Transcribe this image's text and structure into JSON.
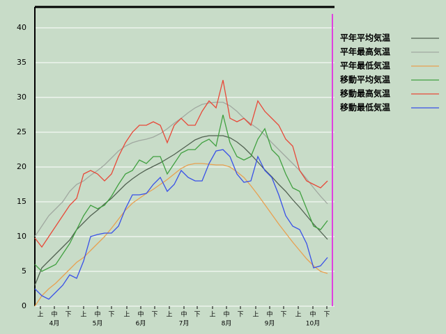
{
  "chart_data": {
    "type": "line",
    "x": [
      0,
      5,
      10,
      15,
      20,
      25,
      30,
      35,
      40,
      45,
      50,
      55,
      60,
      65,
      70,
      75,
      80,
      85,
      90,
      95,
      100,
      105,
      110,
      115,
      120,
      125,
      130,
      135,
      140,
      145,
      150,
      155,
      160,
      165,
      170,
      175,
      180,
      185,
      190,
      195,
      200,
      205,
      210
    ],
    "xlim": [
      0,
      215
    ],
    "xticks": [
      {
        "value": 4,
        "label": "上"
      },
      {
        "value": 14,
        "label": "中"
      },
      {
        "value": 24,
        "label": "下"
      },
      {
        "value": 35,
        "label": "上"
      },
      {
        "value": 45,
        "label": "中"
      },
      {
        "value": 55,
        "label": "下"
      },
      {
        "value": 66,
        "label": "上"
      },
      {
        "value": 76,
        "label": "中"
      },
      {
        "value": 86,
        "label": "下"
      },
      {
        "value": 96.5,
        "label": "上"
      },
      {
        "value": 107,
        "label": "中"
      },
      {
        "value": 116.5,
        "label": "下"
      },
      {
        "value": 127.5,
        "label": "上"
      },
      {
        "value": 137.5,
        "label": "中"
      },
      {
        "value": 147.5,
        "label": "下"
      },
      {
        "value": 158.5,
        "label": "上"
      },
      {
        "value": 168.5,
        "label": "中"
      },
      {
        "value": 178.5,
        "label": "下"
      },
      {
        "value": 189,
        "label": "上"
      },
      {
        "value": 199.5,
        "label": "中"
      },
      {
        "value": 209.5,
        "label": "下"
      }
    ],
    "month_labels": [
      {
        "value": 14,
        "label": "4月"
      },
      {
        "value": 45,
        "label": "5月"
      },
      {
        "value": 76,
        "label": "6月"
      },
      {
        "value": 107,
        "label": "7月"
      },
      {
        "value": 137.5,
        "label": "8月"
      },
      {
        "value": 168.5,
        "label": "9月"
      },
      {
        "value": 199.5,
        "label": "10月"
      }
    ],
    "ylim": [
      0,
      43
    ],
    "yticks": [
      0,
      5,
      10,
      15,
      20,
      25,
      30,
      35,
      40
    ],
    "grid": true,
    "legend": "top-right",
    "current_line": {
      "x": 213.5,
      "color": "#e040e0"
    },
    "series": [
      {
        "name": "平年平均気温",
        "color": "#506050",
        "values": [
          3.0,
          5.5,
          6.5,
          7.5,
          8.5,
          9.5,
          11,
          12,
          13,
          13.8,
          14.7,
          15.5,
          16.5,
          17.5,
          18.3,
          19,
          19.6,
          20.1,
          20.6,
          21.2,
          21.8,
          22.5,
          23.2,
          23.9,
          24.3,
          24.5,
          24.5,
          24.5,
          24.2,
          23.6,
          22.8,
          21.8,
          20.7,
          19.6,
          18.6,
          17.5,
          16.5,
          15.3,
          14.2,
          13,
          11.8,
          10.7,
          9.6
        ]
      },
      {
        "name": "平年最高気温",
        "color": "#a0a8a0",
        "values": [
          10,
          11.5,
          13,
          14,
          15,
          16.5,
          17.5,
          18,
          18.8,
          19.5,
          20.3,
          21.3,
          22.3,
          23,
          23.5,
          23.8,
          24,
          24.3,
          24.8,
          25.5,
          26.3,
          27,
          27.8,
          28.5,
          29,
          29.2,
          29.3,
          29.3,
          28.8,
          28,
          27,
          26.2,
          25.5,
          24.6,
          23.5,
          22.5,
          21.5,
          20.5,
          19.5,
          18.3,
          17,
          15.8,
          14.7
        ]
      },
      {
        "name": "平年最低気温",
        "color": "#e8a050",
        "values": [
          0,
          1.5,
          2.5,
          3.3,
          4.3,
          5.3,
          6.3,
          7,
          8,
          9,
          10,
          11.2,
          12.5,
          13.8,
          14.8,
          15.5,
          16.2,
          16.8,
          17.5,
          18.2,
          19,
          19.8,
          20.3,
          20.5,
          20.5,
          20.4,
          20.3,
          20.3,
          20,
          19.3,
          18.5,
          17.3,
          16,
          14.6,
          13.2,
          11.8,
          10.5,
          9.2,
          8,
          6.8,
          5.8,
          5,
          4.7
        ]
      },
      {
        "name": "移動平均気温",
        "color": "#40a040",
        "values": [
          6,
          5,
          5.5,
          6,
          7.5,
          9,
          11,
          13,
          14.5,
          14,
          14.5,
          15.8,
          17.5,
          19,
          19.5,
          21,
          20.5,
          21.5,
          21.5,
          19,
          20.5,
          22,
          22.5,
          22.5,
          23.5,
          24,
          23,
          27.5,
          23.5,
          21.5,
          21,
          21.5,
          24,
          25.5,
          22.5,
          21.5,
          19,
          17,
          16.5,
          14,
          11.5,
          11,
          12.3
        ]
      },
      {
        "name": "移動最高気温",
        "color": "#e84838",
        "values": [
          9.8,
          8.5,
          10,
          11.5,
          13,
          14.5,
          15.5,
          19,
          19.5,
          19,
          18,
          19,
          21.5,
          23.5,
          25,
          26,
          26,
          26.5,
          26,
          23.5,
          26,
          27,
          26,
          26,
          28,
          29.5,
          28.5,
          32.5,
          27,
          26.5,
          27,
          26,
          29.5,
          28,
          27,
          26,
          24,
          23,
          19.5,
          18,
          17.5,
          17,
          18
        ]
      },
      {
        "name": "移動最低気温",
        "color": "#3850e8",
        "values": [
          2.5,
          1.5,
          1,
          2,
          3,
          4.5,
          4,
          6.5,
          10,
          10.3,
          10.5,
          10.5,
          11.5,
          14,
          16,
          16,
          16.2,
          17.5,
          18.5,
          16.5,
          17.5,
          19.5,
          18.5,
          18,
          18,
          20.5,
          22.3,
          22.5,
          21.5,
          19,
          17.8,
          18,
          21.5,
          19.5,
          18.5,
          16,
          13,
          11.5,
          11,
          9,
          5.5,
          5.8,
          7
        ]
      }
    ]
  }
}
